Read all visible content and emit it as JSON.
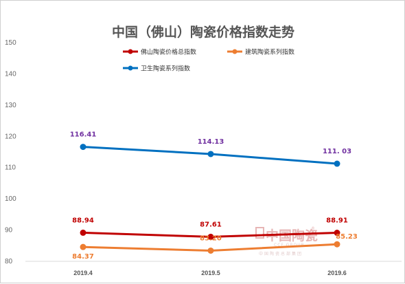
{
  "chart_data": {
    "type": "line",
    "title": "中国（佛山）陶瓷价格指数走势",
    "categories": [
      "2019.4",
      "2019.5",
      "2019.6"
    ],
    "ylim": [
      80,
      150
    ],
    "yticks": [
      80,
      90,
      100,
      110,
      120,
      130,
      140,
      150
    ],
    "grid": false,
    "legend_position": "top",
    "series": [
      {
        "name": "佛山陶瓷价格总指数",
        "color": "#c00000",
        "values": [
          88.94,
          87.61,
          88.91
        ],
        "labels": [
          "88.94",
          "87.61",
          "88.91"
        ],
        "label_color": "#c00000"
      },
      {
        "name": "建筑陶瓷系列指数",
        "color": "#ed7d31",
        "values": [
          84.37,
          83.2,
          85.23
        ],
        "labels": [
          "84.37",
          "83.20",
          "85.23"
        ],
        "label_color": "#ed7d31"
      },
      {
        "name": "卫生陶瓷系列指数",
        "color": "#0070c0",
        "values": [
          116.41,
          114.13,
          111.03
        ],
        "labels": [
          "116.41",
          "114.13",
          "111. 03"
        ],
        "label_color": "#7030a0"
      }
    ]
  },
  "watermark": {
    "logo": "中国陶瓷",
    "en": "CCF GROUP",
    "cn": "中国陶瓷总部集团"
  }
}
